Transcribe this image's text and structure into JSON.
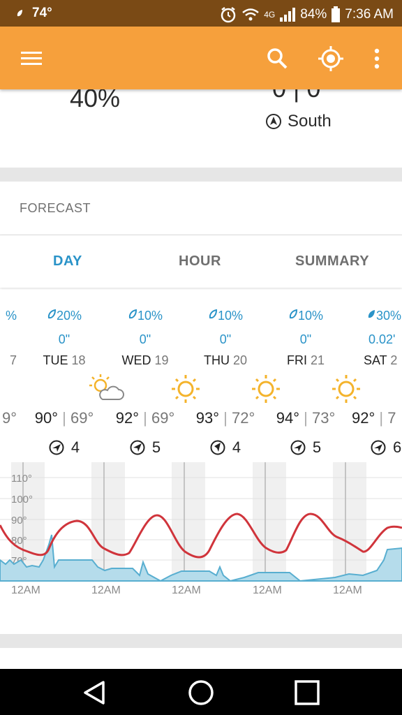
{
  "status_bar": {
    "temperature": "74°",
    "network": "4G",
    "battery": "84%",
    "time": "7:36 AM"
  },
  "app_bar": {
    "menu_icon": "hamburger-menu-icon",
    "search_icon": "search-icon",
    "location_icon": "gps-location-icon",
    "more_icon": "more-vert-icon"
  },
  "current": {
    "humidity": "40%",
    "wind_partial": "0 | 0",
    "wind_direction": "South",
    "accent": "#f6a03c"
  },
  "forecast": {
    "title": "FORECAST",
    "tabs": [
      "DAY",
      "HOUR",
      "SUMMARY"
    ],
    "active_tab": "DAY",
    "days": [
      {
        "precip": "%",
        "amount": "",
        "name": "",
        "num": "7",
        "hi": "",
        "lo": "9°",
        "wind": "",
        "icon": "partly-cloudy-icon"
      },
      {
        "precip": "20%",
        "amount": "0\"",
        "name": "TUE",
        "num": "18",
        "hi": "90°",
        "lo": "69°",
        "wind": "4",
        "icon": "partly-cloudy-icon"
      },
      {
        "precip": "10%",
        "amount": "0\"",
        "name": "WED",
        "num": "19",
        "hi": "92°",
        "lo": "69°",
        "wind": "5",
        "icon": "sunny-icon"
      },
      {
        "precip": "10%",
        "amount": "0\"",
        "name": "THU",
        "num": "20",
        "hi": "93°",
        "lo": "72°",
        "wind": "4",
        "icon": "sunny-icon"
      },
      {
        "precip": "10%",
        "amount": "0\"",
        "name": "FRI",
        "num": "21",
        "hi": "94°",
        "lo": "73°",
        "wind": "5",
        "icon": "sunny-icon"
      },
      {
        "precip": "30%",
        "amount": "0.02'",
        "name": "SAT",
        "num": "2",
        "hi": "92°",
        "lo": "7",
        "wind": "6",
        "icon": "thunderstorm-icon"
      }
    ],
    "chart_labels": {
      "y": [
        "110°",
        "100°",
        "90°",
        "80°",
        "70°"
      ],
      "x": [
        "12AM",
        "12AM",
        "12AM",
        "12AM",
        "12AM"
      ]
    }
  },
  "nav": {
    "back_icon": "back-triangle-icon",
    "home_icon": "home-circle-icon",
    "recents_icon": "recents-square-icon"
  }
}
